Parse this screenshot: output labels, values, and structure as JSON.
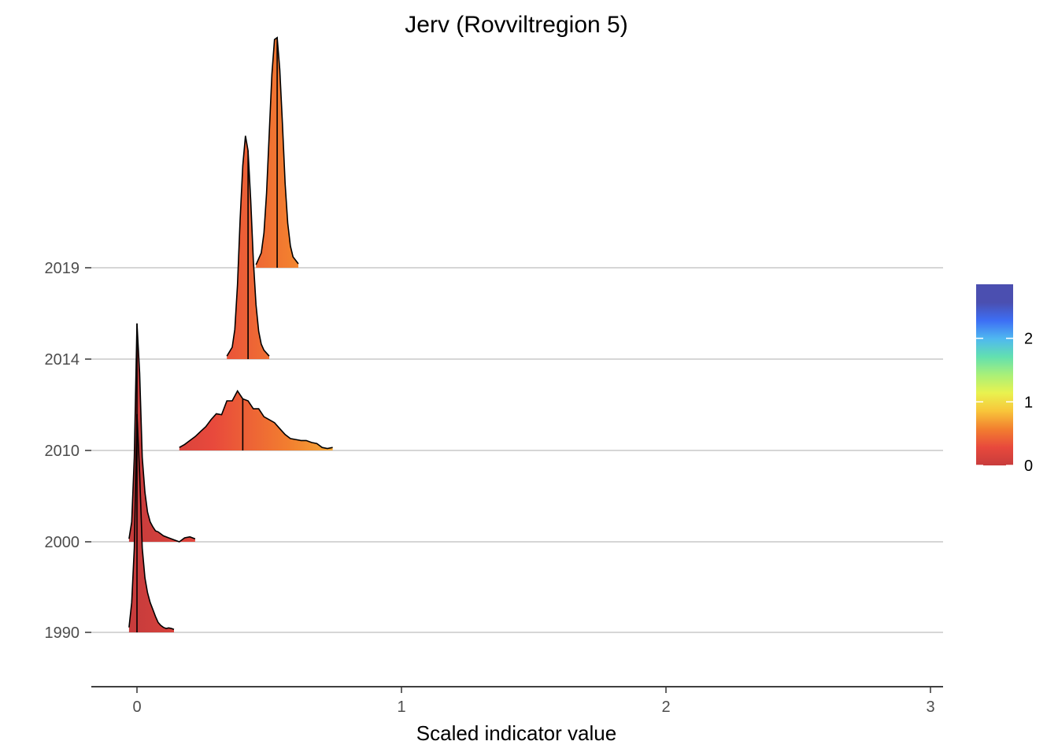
{
  "chart_data": {
    "type": "ridgeline",
    "title": "Jerv (Rovviltregion 5)",
    "xlabel": "Scaled indicator value",
    "ylabel": "",
    "xlim": [
      -0.17,
      3.04
    ],
    "x_ticks": [
      0,
      1,
      2,
      3
    ],
    "x_tick_labels": [
      "0",
      "1",
      "2",
      "3"
    ],
    "categories": [
      "1990",
      "2000",
      "2010",
      "2014",
      "2019"
    ],
    "grid": "horizontal",
    "legend": {
      "placement": "right",
      "type": "colorbar",
      "ticks": [
        0,
        1,
        2
      ],
      "tick_labels": [
        "0",
        "1",
        "2"
      ],
      "range": [
        0,
        2.85
      ],
      "colors": [
        "#c83c3c",
        "#e8493c",
        "#f27e2f",
        "#f8c53a",
        "#e9f24f",
        "#a9f078",
        "#62e0b0",
        "#4fb8f0",
        "#3d6ef5",
        "#4b4fb0",
        "#4b4fb0"
      ]
    },
    "series": [
      {
        "category": "1990",
        "median": 0.0,
        "x": [
          -0.03,
          -0.02,
          -0.01,
          0.0,
          0.01,
          0.02,
          0.03,
          0.04,
          0.05,
          0.06,
          0.07,
          0.08,
          0.09,
          0.1,
          0.11,
          0.12,
          0.13,
          0.14
        ],
        "density": [
          0.05,
          0.3,
          0.85,
          2.2,
          1.6,
          0.85,
          0.55,
          0.4,
          0.3,
          0.23,
          0.16,
          0.1,
          0.07,
          0.05,
          0.04,
          0.045,
          0.04,
          0.03
        ]
      },
      {
        "category": "2000",
        "median": 0.0,
        "x": [
          -0.03,
          -0.02,
          -0.01,
          0.0,
          0.01,
          0.02,
          0.03,
          0.04,
          0.05,
          0.06,
          0.07,
          0.08,
          0.1,
          0.12,
          0.14,
          0.16,
          0.18,
          0.2,
          0.22
        ],
        "density": [
          0.03,
          0.2,
          0.85,
          2.2,
          1.7,
          0.85,
          0.5,
          0.3,
          0.2,
          0.15,
          0.11,
          0.1,
          0.06,
          0.04,
          0.02,
          0.0,
          0.04,
          0.05,
          0.03
        ]
      },
      {
        "category": "2010",
        "median": 0.4,
        "x": [
          0.16,
          0.18,
          0.2,
          0.22,
          0.24,
          0.26,
          0.28,
          0.3,
          0.32,
          0.34,
          0.36,
          0.38,
          0.4,
          0.42,
          0.44,
          0.46,
          0.48,
          0.5,
          0.52,
          0.54,
          0.56,
          0.58,
          0.6,
          0.62,
          0.64,
          0.66,
          0.68,
          0.7,
          0.72,
          0.74
        ],
        "density": [
          0.03,
          0.06,
          0.1,
          0.14,
          0.19,
          0.24,
          0.31,
          0.37,
          0.36,
          0.5,
          0.5,
          0.6,
          0.52,
          0.5,
          0.42,
          0.42,
          0.34,
          0.31,
          0.28,
          0.22,
          0.16,
          0.12,
          0.11,
          0.1,
          0.1,
          0.08,
          0.07,
          0.03,
          0.02,
          0.03
        ]
      },
      {
        "category": "2014",
        "median": 0.42,
        "x": [
          0.34,
          0.36,
          0.37,
          0.38,
          0.39,
          0.4,
          0.41,
          0.42,
          0.43,
          0.44,
          0.45,
          0.46,
          0.47,
          0.48,
          0.5
        ],
        "density": [
          0.03,
          0.12,
          0.3,
          0.75,
          1.4,
          1.95,
          2.25,
          2.1,
          1.6,
          1.0,
          0.55,
          0.28,
          0.15,
          0.09,
          0.03
        ]
      },
      {
        "category": "2019",
        "median": 0.53,
        "x": [
          0.45,
          0.47,
          0.48,
          0.49,
          0.5,
          0.51,
          0.52,
          0.53,
          0.54,
          0.55,
          0.56,
          0.57,
          0.58,
          0.59,
          0.61
        ],
        "density": [
          0.03,
          0.15,
          0.35,
          0.75,
          1.35,
          1.95,
          2.3,
          2.32,
          2.0,
          1.45,
          0.85,
          0.45,
          0.22,
          0.11,
          0.04
        ]
      }
    ]
  }
}
